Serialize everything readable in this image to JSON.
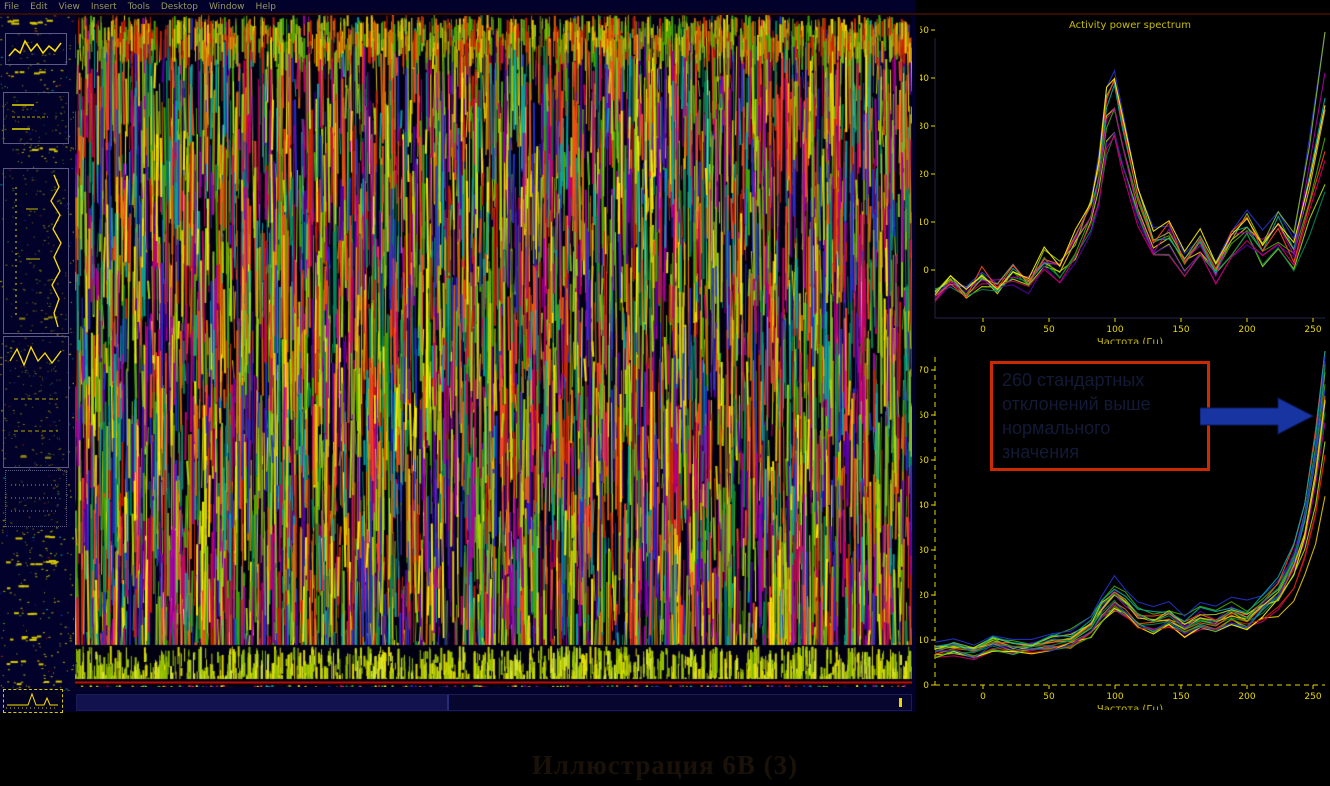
{
  "window_chrome": {
    "menu_items": [
      "File",
      "Edit",
      "View",
      "Insert",
      "Tools",
      "Desktop",
      "Window",
      "Help"
    ]
  },
  "annotation": {
    "lines": [
      "260 стандартных",
      "отклонений выше",
      "нормального",
      "значения"
    ],
    "border_color": "#cc2a00",
    "arrow_color": "#1734a0"
  },
  "caption": {
    "text": "Иллюстрация 6В (3)"
  },
  "colors": {
    "window_bg": "#01012c",
    "figure_bg": "#000000",
    "tick_label": "#e8d800",
    "axis_label": "#c8bc00",
    "red_line": "#cc1100",
    "separator": "#340d00"
  },
  "chart_data": [
    {
      "id": "top_spectrum",
      "type": "line",
      "title": "Activity power spectrum",
      "xlabel": "Частота (Гц)",
      "ylabel": "",
      "xticks": [
        0,
        50,
        100,
        150,
        200,
        250
      ],
      "yticks": [
        50,
        40,
        30,
        20,
        10,
        0
      ],
      "xlim": [
        0,
        250
      ],
      "ylim": [
        0,
        55
      ],
      "grid": false,
      "legend": null,
      "n_series": 12,
      "x": [
        0,
        10,
        20,
        30,
        40,
        50,
        60,
        70,
        80,
        90,
        100,
        105,
        110,
        115,
        120,
        130,
        140,
        150,
        160,
        170,
        180,
        190,
        200,
        210,
        220,
        230,
        240,
        250
      ],
      "y_base": [
        5,
        7,
        5,
        8,
        6,
        9,
        7,
        11,
        9,
        14,
        20,
        27,
        39,
        42,
        35,
        22,
        14,
        16,
        11,
        14,
        9,
        15,
        18,
        13,
        16,
        11,
        22,
        33
      ]
    },
    {
      "id": "bottom_spectrum",
      "type": "line",
      "title": "",
      "xlabel": "Частота (Гц)",
      "ylabel": "",
      "xticks": [
        0,
        50,
        100,
        150,
        200,
        250
      ],
      "yticks": [
        70,
        60,
        50,
        40,
        30,
        20,
        10,
        0
      ],
      "xlim": [
        0,
        250
      ],
      "ylim": [
        0,
        75
      ],
      "grid": false,
      "legend": null,
      "n_series": 20,
      "x": [
        0,
        12,
        25,
        37,
        50,
        62,
        75,
        87,
        100,
        107,
        115,
        122,
        130,
        140,
        150,
        160,
        170,
        180,
        190,
        200,
        210,
        220,
        230,
        237,
        244,
        250
      ],
      "y_base": [
        8,
        9,
        8,
        10,
        9,
        9,
        10,
        11,
        14,
        18,
        21,
        19,
        16,
        15,
        16,
        14,
        16,
        15,
        17,
        16,
        18,
        20,
        25,
        32,
        43,
        57
      ]
    }
  ]
}
